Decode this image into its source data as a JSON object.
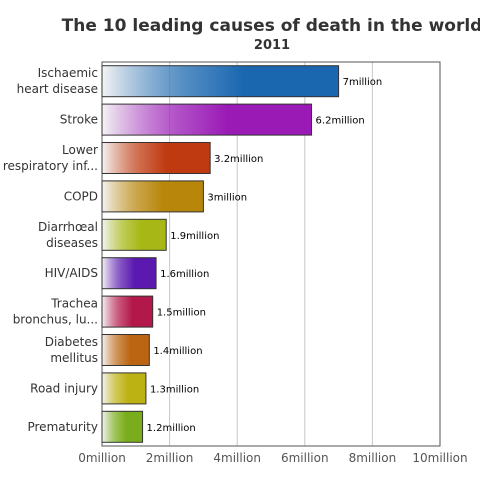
{
  "chart_data": {
    "type": "bar",
    "orientation": "horizontal",
    "title": "The 10 leading causes of death in the world",
    "subtitle": "2011",
    "categories": [
      [
        "Ischaemic",
        "heart disease"
      ],
      [
        "Stroke"
      ],
      [
        "Lower",
        "respiratory inf..."
      ],
      [
        "COPD"
      ],
      [
        "Diarrhœal",
        "diseases"
      ],
      [
        "HIV/AIDS"
      ],
      [
        "Trachea",
        "bronchus, lu..."
      ],
      [
        "Diabetes",
        "mellitus"
      ],
      [
        "Road injury"
      ],
      [
        "Prematurity"
      ]
    ],
    "values": [
      7,
      6.2,
      3.2,
      3,
      1.9,
      1.6,
      1.5,
      1.4,
      1.3,
      1.2
    ],
    "data_labels": [
      "7million",
      "6.2million",
      "3.2million",
      "3million",
      "1.9million",
      "1.6million",
      "1.5million",
      "1.4million",
      "1.3million",
      "1.2million"
    ],
    "colors": [
      "#1a67b0",
      "#9a1ab6",
      "#bf3a10",
      "#b8860b",
      "#a7b816",
      "#5b19b0",
      "#b3184a",
      "#bb6512",
      "#bdb213",
      "#7aad1c"
    ],
    "xlim": [
      0,
      10
    ],
    "xticks": [
      0,
      2,
      4,
      6,
      8,
      10
    ],
    "xtick_labels": [
      "0million",
      "2million",
      "4million",
      "6million",
      "8million",
      "10million"
    ],
    "xlabel": "",
    "ylabel": "",
    "grid": true,
    "legend": "none"
  }
}
